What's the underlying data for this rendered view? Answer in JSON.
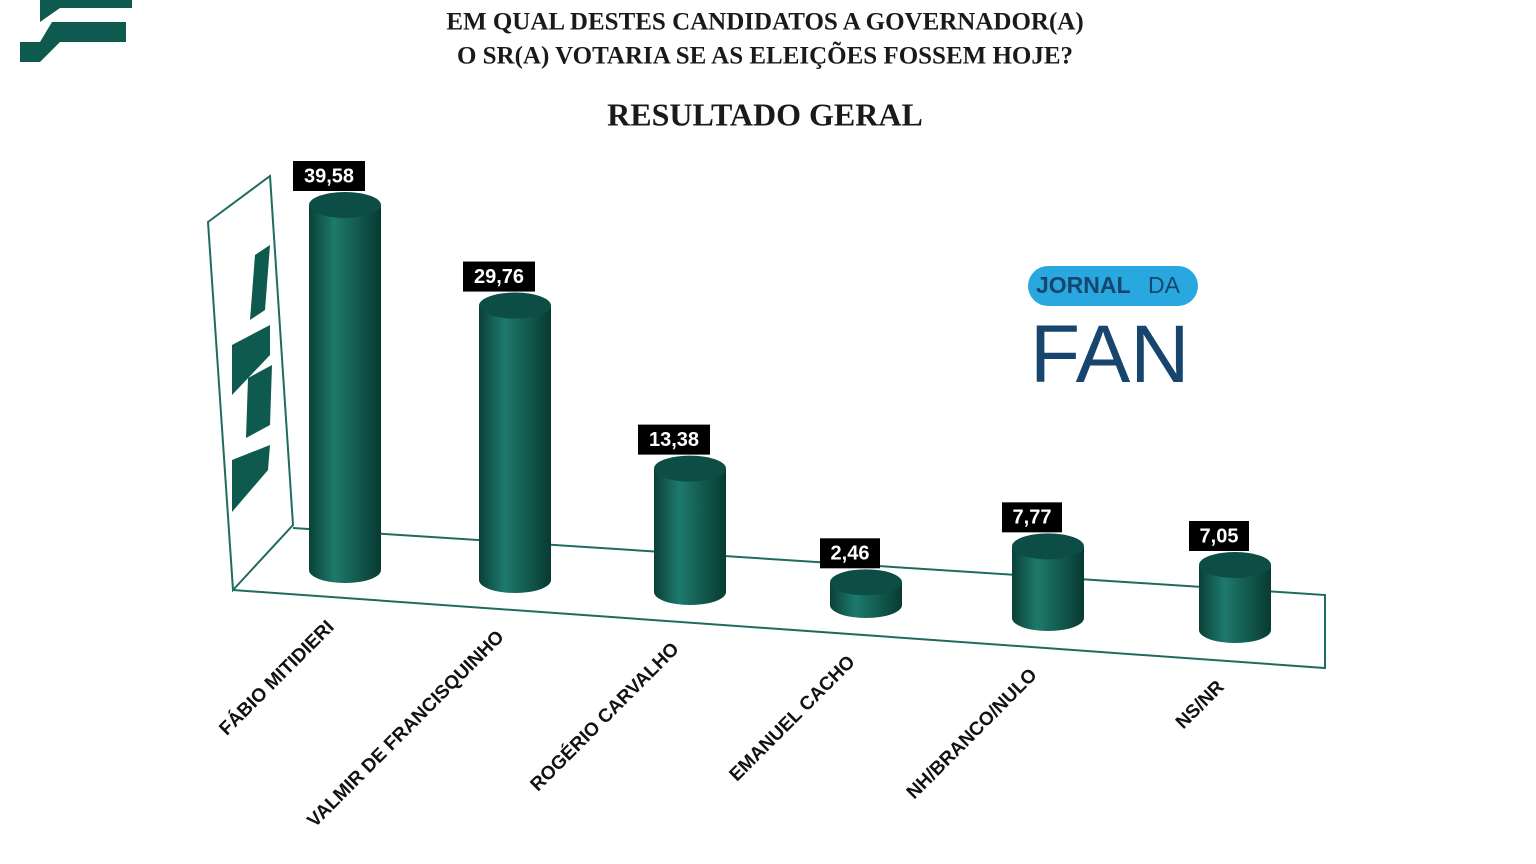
{
  "chart_data": {
    "type": "cylinder-bar",
    "title": [
      "EM QUAL DESTES CANDIDATOS A GOVERNADOR(A)",
      "O SR(A) VOTARIA SE AS ELEIÇÕES FOSSEM HOJE?"
    ],
    "subtitle": "RESULTADO GERAL",
    "categories": [
      "FÁBIO MITIDIERI",
      "VALMIR DE FRANCISQUINHO",
      "ROGÉRIO CARVALHO",
      "EMANUEL CACHO",
      "NH/BRANCO/NULO",
      "NS/NR"
    ],
    "values": [
      39.58,
      29.76,
      13.38,
      2.46,
      7.77,
      7.05
    ],
    "value_labels": [
      "39,58",
      "29,76",
      "13,38",
      "2,46",
      "7,77",
      "7,05"
    ],
    "color": "#0f5a4f"
  },
  "logo": {
    "word1": "JORNAL",
    "word2": "DA",
    "word3": "FAN"
  }
}
